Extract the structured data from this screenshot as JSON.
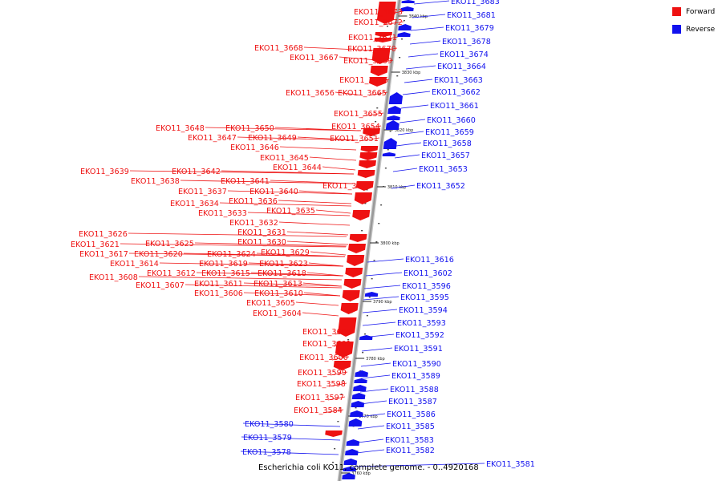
{
  "caption": "Escherichia coli KO11, complete genome. - 0..4920168",
  "legend": [
    {
      "label": "Forward",
      "color": "#ee1111"
    },
    {
      "label": "Reverse",
      "color": "#1111ee"
    }
  ],
  "colors": {
    "forward": "#ee1111",
    "reverse": "#1111ee",
    "backbone": "#999999"
  },
  "ticks": [
    {
      "label": "3840 kbp"
    },
    {
      "label": "3830 kbp"
    },
    {
      "label": "3820 kbp"
    },
    {
      "label": "3810 kbp"
    },
    {
      "label": "3800 kbp"
    },
    {
      "label": "3790 kbp"
    },
    {
      "label": "3780 kbp"
    },
    {
      "label": "3770 kbp"
    },
    {
      "label": "3760 kbp"
    }
  ],
  "forward_genes": [
    {
      "label": "EKO11_3673"
    },
    {
      "label": "EKO11_3672"
    },
    {
      "label": "EKO11_3671"
    },
    {
      "label": "EKO11_3670"
    },
    {
      "label": "EKO11_3668"
    },
    {
      "label": "EKO11_3667"
    },
    {
      "label": "EKO11_3669"
    },
    {
      "label": "EKO11_3666"
    },
    {
      "label": "EKO11_3656"
    },
    {
      "label": "EKO11_3665"
    },
    {
      "label": "EKO11_3655"
    },
    {
      "label": "EKO11_3648"
    },
    {
      "label": "EKO11_3650"
    },
    {
      "label": "EKO11_3654"
    },
    {
      "label": "EKO11_3647"
    },
    {
      "label": "EKO11_3649"
    },
    {
      "label": "EKO11_3651"
    },
    {
      "label": "EKO11_3646"
    },
    {
      "label": "EKO11_3645"
    },
    {
      "label": "EKO11_3644"
    },
    {
      "label": "EKO11_3639"
    },
    {
      "label": "EKO11_3642"
    },
    {
      "label": "EKO11_3638"
    },
    {
      "label": "EKO11_3641"
    },
    {
      "label": "EKO11_3643"
    },
    {
      "label": "EKO11_3637"
    },
    {
      "label": "EKO11_3640"
    },
    {
      "label": "EKO11_3634"
    },
    {
      "label": "EKO11_3636"
    },
    {
      "label": "EKO11_3633"
    },
    {
      "label": "EKO11_3635"
    },
    {
      "label": "EKO11_3632"
    },
    {
      "label": "EKO11_3631"
    },
    {
      "label": "EKO11_3626"
    },
    {
      "label": "EKO11_3630"
    },
    {
      "label": "EKO11_3621"
    },
    {
      "label": "EKO11_3625"
    },
    {
      "label": "EKO11_3629"
    },
    {
      "label": "EKO11_3617"
    },
    {
      "label": "EKO11_3620"
    },
    {
      "label": "EKO11_3624"
    },
    {
      "label": "EKO11_3614"
    },
    {
      "label": "EKO11_3619"
    },
    {
      "label": "EKO11_3623"
    },
    {
      "label": "EKO11_3612"
    },
    {
      "label": "EKO11_3615"
    },
    {
      "label": "EKO11_3618"
    },
    {
      "label": "EKO11_3608"
    },
    {
      "label": "EKO11_3607"
    },
    {
      "label": "EKO11_3611"
    },
    {
      "label": "EKO11_3613"
    },
    {
      "label": "EKO11_3606"
    },
    {
      "label": "EKO11_3610"
    },
    {
      "label": "EKO11_3605"
    },
    {
      "label": "EKO11_3604"
    },
    {
      "label": "EKO11_3603"
    },
    {
      "label": "EKO11_3601"
    },
    {
      "label": "EKO11_3600"
    },
    {
      "label": "EKO11_3599"
    },
    {
      "label": "EKO11_3598"
    },
    {
      "label": "EKO11_3597"
    },
    {
      "label": "EKO11_3584"
    }
  ],
  "reverse_genes": [
    {
      "label": "EKO11_3683"
    },
    {
      "label": "EKO11_3681"
    },
    {
      "label": "EKO11_3679"
    },
    {
      "label": "EKO11_3678"
    },
    {
      "label": "EKO11_3674"
    },
    {
      "label": "EKO11_3664"
    },
    {
      "label": "EKO11_3663"
    },
    {
      "label": "EKO11_3662"
    },
    {
      "label": "EKO11_3661"
    },
    {
      "label": "EKO11_3660"
    },
    {
      "label": "EKO11_3659"
    },
    {
      "label": "EKO11_3658"
    },
    {
      "label": "EKO11_3657"
    },
    {
      "label": "EKO11_3653"
    },
    {
      "label": "EKO11_3652"
    },
    {
      "label": "EKO11_3616"
    },
    {
      "label": "EKO11_3602"
    },
    {
      "label": "EKO11_3596"
    },
    {
      "label": "EKO11_3595"
    },
    {
      "label": "EKO11_3594"
    },
    {
      "label": "EKO11_3593"
    },
    {
      "label": "EKO11_3592"
    },
    {
      "label": "EKO11_3591"
    },
    {
      "label": "EKO11_3590"
    },
    {
      "label": "EKO11_3589"
    },
    {
      "label": "EKO11_3588"
    },
    {
      "label": "EKO11_3587"
    },
    {
      "label": "EKO11_3586"
    },
    {
      "label": "EKO11_3585"
    },
    {
      "label": "EKO11_3583"
    },
    {
      "label": "EKO11_3582"
    },
    {
      "label": "EKO11_3580"
    },
    {
      "label": "EKO11_3579"
    },
    {
      "label": "EKO11_3578"
    },
    {
      "label": "EKO11_3581"
    }
  ]
}
